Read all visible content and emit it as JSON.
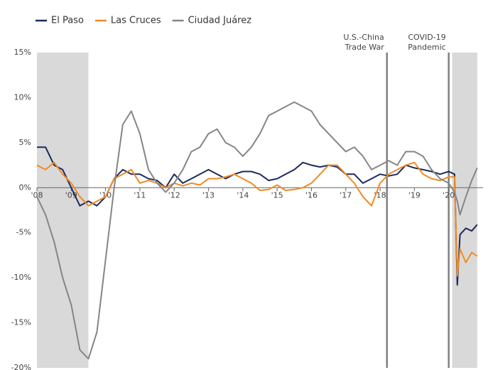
{
  "chart_data": {
    "type": "line",
    "x": [
      2008.0,
      2008.25,
      2008.5,
      2008.75,
      2009.0,
      2009.25,
      2009.5,
      2009.75,
      2010.0,
      2010.25,
      2010.5,
      2010.75,
      2011.0,
      2011.25,
      2011.5,
      2011.75,
      2012.0,
      2012.25,
      2012.5,
      2012.75,
      2013.0,
      2013.25,
      2013.5,
      2013.75,
      2014.0,
      2014.25,
      2014.5,
      2014.75,
      2015.0,
      2015.25,
      2015.5,
      2015.75,
      2016.0,
      2016.25,
      2016.5,
      2016.75,
      2017.0,
      2017.25,
      2017.5,
      2017.75,
      2018.0,
      2018.25,
      2018.5,
      2018.75,
      2019.0,
      2019.25,
      2019.5,
      2019.75,
      2020.0,
      2020.17,
      2020.25,
      2020.33,
      2020.5,
      2020.67,
      2020.83
    ],
    "series": [
      {
        "name": "El Paso",
        "color": "#1b2a5e",
        "values": [
          4.5,
          4.5,
          2.5,
          2,
          0,
          -2,
          -1.5,
          -2,
          -1,
          1,
          2,
          1.5,
          1.5,
          1,
          0.8,
          0,
          1.5,
          0.5,
          1,
          1.5,
          2,
          1.5,
          1,
          1.5,
          1.8,
          1.8,
          1.5,
          0.8,
          1,
          1.5,
          2,
          2.8,
          2.5,
          2.3,
          2.5,
          2.3,
          1.5,
          1.5,
          0.5,
          1,
          1.5,
          1.3,
          1.5,
          2.5,
          2.2,
          2,
          1.8,
          1.5,
          1.8,
          1.5,
          -10.8,
          -5.2,
          -4.5,
          -4.8,
          -4.1
        ]
      },
      {
        "name": "Las Cruces",
        "color": "#f08a24",
        "values": [
          2.5,
          2,
          2.8,
          1.5,
          0.5,
          -1,
          -2,
          -1.5,
          -1,
          1,
          1.5,
          2,
          0.5,
          0.8,
          0.5,
          0,
          0.5,
          0.2,
          0.5,
          0.3,
          1,
          1,
          1.2,
          1.5,
          1,
          0.5,
          -0.3,
          -0.2,
          0.3,
          -0.3,
          -0.2,
          0,
          0.5,
          1.5,
          2.5,
          2.5,
          1.5,
          0.5,
          -1,
          -2,
          0.5,
          1.5,
          2,
          2.5,
          2.8,
          1.5,
          1,
          0.8,
          1.2,
          1.2,
          -9.8,
          -6.8,
          -8.3,
          -7.2,
          -7.6
        ]
      },
      {
        "name": "Ciudad Juárez",
        "color": "#858585",
        "values": [
          -1,
          -3,
          -6,
          -10,
          -13,
          -18,
          -19,
          -16,
          -8,
          0,
          7,
          8.5,
          6,
          2,
          0.5,
          -0.5,
          0.5,
          2,
          4,
          4.5,
          6,
          6.5,
          5,
          4.5,
          3.5,
          4.5,
          6,
          8,
          8.5,
          9,
          9.5,
          9,
          8.5,
          7,
          6,
          5,
          4,
          4.5,
          3.5,
          2,
          2.5,
          3,
          2.5,
          4,
          4,
          3.5,
          2,
          1,
          0.5,
          -0.5,
          -1.5,
          -3,
          -1,
          0.8,
          2.2
        ]
      }
    ],
    "xlim": [
      2008,
      2021
    ],
    "xticks": [
      {
        "value": 2008,
        "label": "'08"
      },
      {
        "value": 2009,
        "label": "'09"
      },
      {
        "value": 2010,
        "label": "'10"
      },
      {
        "value": 2011,
        "label": "'11"
      },
      {
        "value": 2012,
        "label": "'12"
      },
      {
        "value": 2013,
        "label": "'13"
      },
      {
        "value": 2014,
        "label": "'14"
      },
      {
        "value": 2015,
        "label": "'15"
      },
      {
        "value": 2016,
        "label": "'16"
      },
      {
        "value": 2017,
        "label": "'17"
      },
      {
        "value": 2018,
        "label": "'18"
      },
      {
        "value": 2019,
        "label": "'19"
      },
      {
        "value": 2020,
        "label": "'20"
      }
    ],
    "ylim": [
      -20,
      15
    ],
    "yticks": [
      {
        "value": 15,
        "label": "15%"
      },
      {
        "value": 10,
        "label": "10%"
      },
      {
        "value": 5,
        "label": "5%"
      },
      {
        "value": 0,
        "label": "0%"
      },
      {
        "value": -5,
        "label": "-5%"
      },
      {
        "value": -10,
        "label": "-10%"
      },
      {
        "value": -15,
        "label": "-15%"
      },
      {
        "value": -20,
        "label": "-20%"
      }
    ],
    "shaded_periods": [
      [
        2008,
        2009.5
      ],
      [
        2020.1,
        2020.83
      ]
    ],
    "annotations": [
      {
        "x": 2018.2,
        "text": [
          "U.S.-China",
          "Trade War"
        ]
      },
      {
        "x": 2020.0,
        "text": [
          "COVID-19",
          "Pandemic"
        ]
      }
    ]
  }
}
